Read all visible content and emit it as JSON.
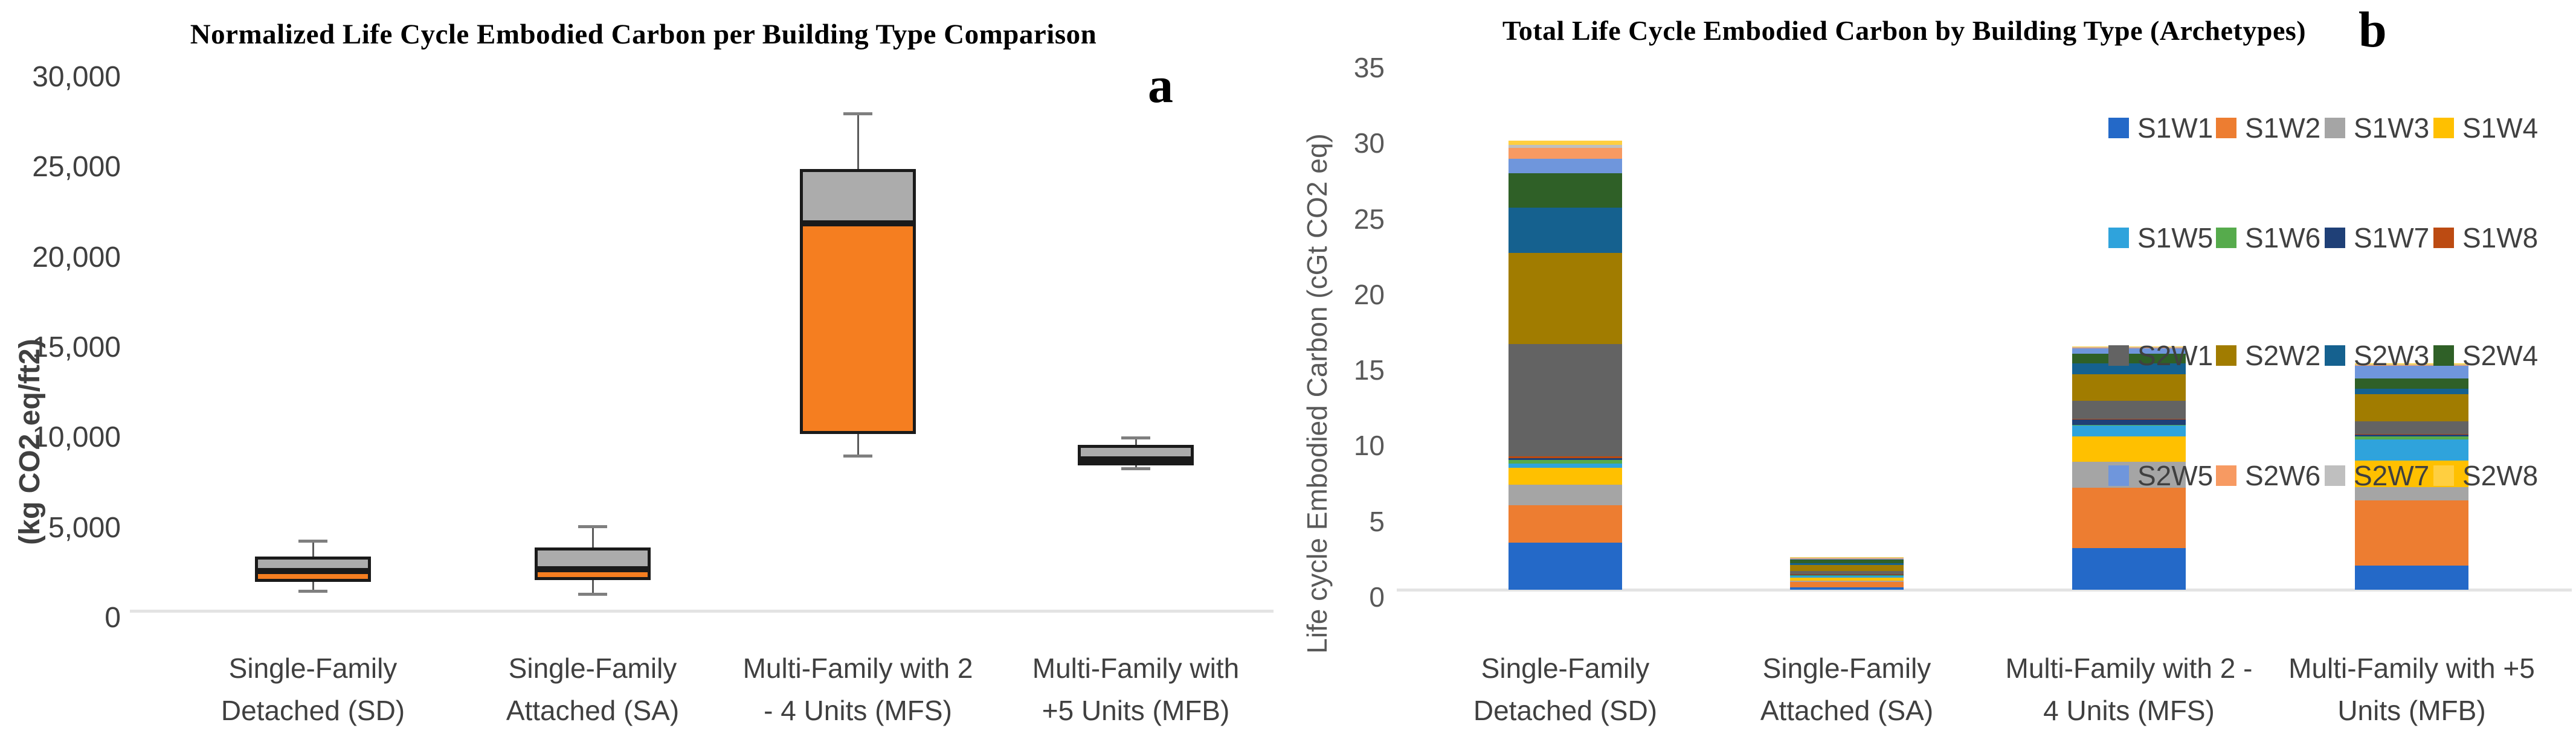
{
  "chart_data": [
    {
      "panel_letter": "a",
      "type": "boxplot",
      "title": "Normalized Life Cycle Embodied Carbon per Building Type Comparison",
      "ylabel": "(kg CO2 eq/ft2)",
      "ylim": [
        0,
        30000
      ],
      "grid": false,
      "yticks": [
        {
          "value": 0,
          "label": "0"
        },
        {
          "value": 5000,
          "label": "5,000"
        },
        {
          "value": 10000,
          "label": "10,000"
        },
        {
          "value": 15000,
          "label": "15,000"
        },
        {
          "value": 20000,
          "label": "20,000"
        },
        {
          "value": 25000,
          "label": "25,000"
        },
        {
          "value": 30000,
          "label": "30,000"
        }
      ],
      "categories": [
        "Single-Family\nDetached (SD)",
        "Single-Family\nAttached (SA)",
        "Multi-Family with 2\n- 4 Units (MFS)",
        "Multi-Family with\n+5 Units (MFB)"
      ],
      "boxes": [
        {
          "category": "Single-Family Detached (SD)",
          "min": 1100,
          "q1": 1600,
          "median": 2200,
          "q3": 3000,
          "max": 3900
        },
        {
          "category": "Single-Family Attached (SA)",
          "min": 950,
          "q1": 1700,
          "median": 2300,
          "q3": 3500,
          "max": 4700
        },
        {
          "category": "Multi-Family with 2 - 4 Units (MFS)",
          "min": 8600,
          "q1": 9800,
          "median": 21500,
          "q3": 24500,
          "max": 27600
        },
        {
          "category": "Multi-Family with +5 Units (MFB)",
          "min": 7900,
          "q1": 8200,
          "median": 8400,
          "q3": 9200,
          "max": 9600
        }
      ],
      "style": {
        "lower_box_color": "#F57E20",
        "upper_box_color": "#ACACAC",
        "box_border_color": "#1A1A1A",
        "whisker_color": "#5A5A5A",
        "axis_line_color": "#E3E3E3",
        "tick_color": "#404040"
      }
    },
    {
      "panel_letter": "b",
      "type": "stacked-bar",
      "title": "Total Life Cycle Embodied Carbon by Building Type (Archetypes)",
      "ylabel": "Life cycle Embodied Carbon (cGt CO2 eq)",
      "ylim": [
        0,
        35
      ],
      "grid": false,
      "legend_position": "upper-right",
      "yticks": [
        {
          "value": 0,
          "label": "0"
        },
        {
          "value": 5,
          "label": "5"
        },
        {
          "value": 10,
          "label": "10"
        },
        {
          "value": 15,
          "label": "15"
        },
        {
          "value": 20,
          "label": "20"
        },
        {
          "value": 25,
          "label": "25"
        },
        {
          "value": 30,
          "label": "30"
        },
        {
          "value": 35,
          "label": "35"
        }
      ],
      "categories": [
        "Single-Family\nDetached (SD)",
        "Single-Family\nAttached (SA)",
        "Multi-Family with 2 -\n4 Units (MFS)",
        "Multi-Family with +5\nUnits (MFB)"
      ],
      "category_totals": [
        29.7,
        2.15,
        16.1,
        14.95
      ],
      "series": [
        {
          "name": "S1W1",
          "color": "#2469C8",
          "values": [
            3.1,
            0.15,
            2.75,
            1.6
          ]
        },
        {
          "name": "S1W2",
          "color": "#ED7D31",
          "values": [
            2.5,
            0.35,
            4.0,
            4.3
          ]
        },
        {
          "name": "S1W3",
          "color": "#A5A5A5",
          "values": [
            1.35,
            0.1,
            1.7,
            0.9
          ]
        },
        {
          "name": "S1W4",
          "color": "#FFC000",
          "values": [
            1.1,
            0.2,
            1.7,
            1.75
          ]
        },
        {
          "name": "S1W5",
          "color": "#2FA3DC",
          "values": [
            0.3,
            0.1,
            0.7,
            1.4
          ]
        },
        {
          "name": "S1W6",
          "color": "#56AB4C",
          "values": [
            0.25,
            0.05,
            0.05,
            0.2
          ]
        },
        {
          "name": "S1W7",
          "color": "#1F4077",
          "values": [
            0.1,
            0.05,
            0.35,
            0.1
          ]
        },
        {
          "name": "S1W8",
          "color": "#BC4B12",
          "values": [
            0.1,
            0.05,
            0.05,
            0.05
          ]
        },
        {
          "name": "S2W1",
          "color": "#636363",
          "values": [
            7.45,
            0.2,
            1.2,
            0.85
          ]
        },
        {
          "name": "S2W2",
          "color": "#A17C00",
          "values": [
            6.0,
            0.4,
            1.75,
            1.8
          ]
        },
        {
          "name": "S2W3",
          "color": "#15618F",
          "values": [
            3.0,
            0.1,
            0.7,
            0.35
          ]
        },
        {
          "name": "S2W4",
          "color": "#2F6027",
          "values": [
            2.3,
            0.25,
            0.65,
            0.65
          ]
        },
        {
          "name": "S2W5",
          "color": "#6F96DC",
          "values": [
            0.95,
            0.05,
            0.35,
            0.85
          ]
        },
        {
          "name": "S2W6",
          "color": "#F79A62",
          "values": [
            0.7,
            0.05,
            0.05,
            0.05
          ]
        },
        {
          "name": "S2W7",
          "color": "#BFBFBF",
          "values": [
            0.2,
            0.03,
            0.05,
            0.05
          ]
        },
        {
          "name": "S2W8",
          "color": "#FFCF40",
          "values": [
            0.3,
            0.02,
            0.05,
            0.05
          ]
        }
      ],
      "style": {
        "axis_line_color": "#E3E3E3",
        "tick_color": "#595959",
        "label_color": "#404040",
        "legend_text_color": "#404040"
      }
    }
  ]
}
